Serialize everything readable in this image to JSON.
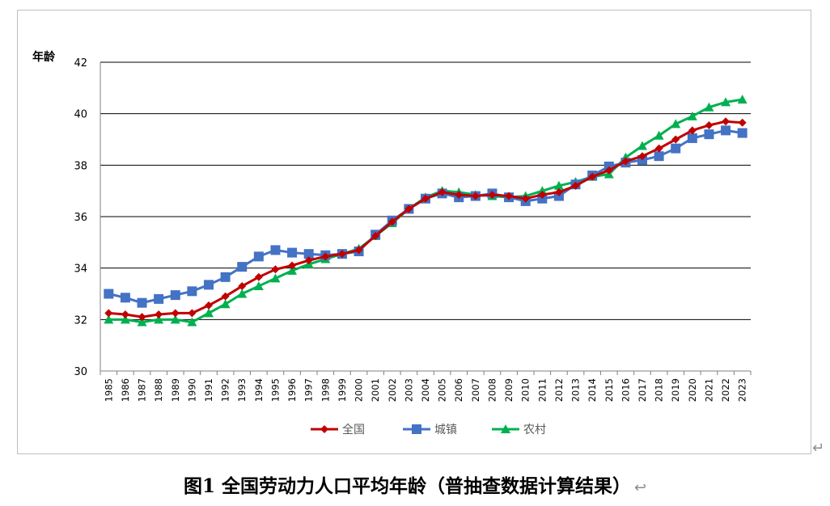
{
  "chart_data": {
    "type": "line",
    "title": "",
    "ylabel": "年龄",
    "xlabel": "",
    "ylim": [
      30,
      42
    ],
    "yticks": [
      30,
      32,
      34,
      36,
      38,
      40,
      42
    ],
    "grid": true,
    "legend_position": "bottom",
    "x": [
      "1985",
      "1986",
      "1987",
      "1988",
      "1989",
      "1990",
      "1991",
      "1992",
      "1993",
      "1994",
      "1995",
      "1996",
      "1997",
      "1998",
      "1999",
      "2000",
      "2001",
      "2002",
      "2003",
      "2004",
      "2005",
      "2006",
      "2007",
      "2008",
      "2009",
      "2010",
      "2011",
      "2012",
      "2013",
      "2014",
      "2015",
      "2016",
      "2017",
      "2018",
      "2019",
      "2020",
      "2021",
      "2022",
      "2023"
    ],
    "series": [
      {
        "name": "全国",
        "color": "#c00000",
        "marker": "diamond",
        "values": [
          32.25,
          32.2,
          32.1,
          32.2,
          32.25,
          32.25,
          32.55,
          32.9,
          33.3,
          33.65,
          33.95,
          34.1,
          34.3,
          34.45,
          34.55,
          34.7,
          35.25,
          35.8,
          36.3,
          36.7,
          36.95,
          36.85,
          36.8,
          36.85,
          36.8,
          36.7,
          36.85,
          36.95,
          37.2,
          37.55,
          37.8,
          38.15,
          38.35,
          38.65,
          39.0,
          39.35,
          39.55,
          39.7,
          39.65
        ]
      },
      {
        "name": "城镇",
        "color": "#4472c4",
        "marker": "square",
        "values": [
          33.0,
          32.85,
          32.65,
          32.8,
          32.95,
          33.1,
          33.35,
          33.65,
          34.05,
          34.45,
          34.7,
          34.6,
          34.55,
          34.5,
          34.55,
          34.65,
          35.3,
          35.85,
          36.3,
          36.7,
          36.9,
          36.75,
          36.8,
          36.9,
          36.75,
          36.6,
          36.7,
          36.8,
          37.25,
          37.6,
          37.95,
          38.1,
          38.2,
          38.35,
          38.65,
          39.05,
          39.2,
          39.35,
          39.25
        ]
      },
      {
        "name": "农村",
        "color": "#00b050",
        "marker": "triangle",
        "values": [
          32.0,
          32.0,
          31.9,
          32.0,
          32.0,
          31.9,
          32.25,
          32.6,
          33.0,
          33.3,
          33.6,
          33.9,
          34.15,
          34.35,
          34.55,
          34.75,
          35.25,
          35.75,
          36.3,
          36.75,
          37.0,
          36.95,
          36.85,
          36.8,
          36.75,
          36.8,
          37.0,
          37.2,
          37.35,
          37.55,
          37.65,
          38.3,
          38.75,
          39.15,
          39.6,
          39.9,
          40.25,
          40.45,
          40.55
        ]
      }
    ]
  },
  "caption": "图1 全国劳动力人口平均年龄（普抽查数据计算结果）",
  "marks": {
    "paragraph": "↵",
    "return": "↩"
  }
}
